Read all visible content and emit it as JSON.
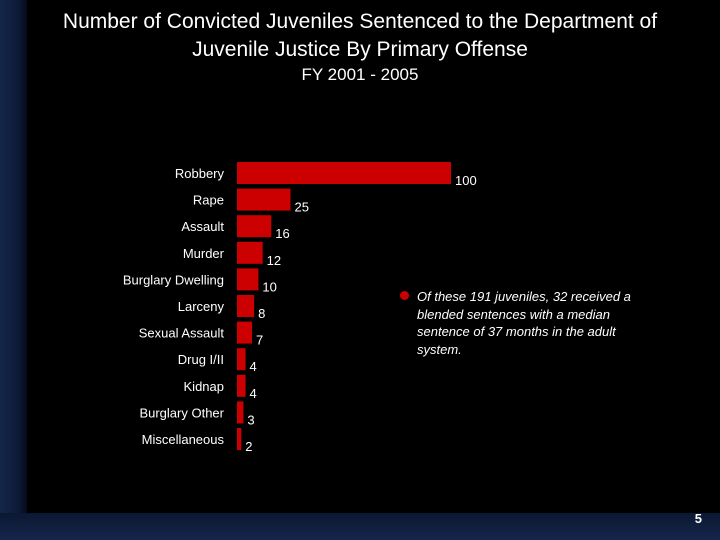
{
  "title": "Number of Convicted Juveniles Sentenced to the Department of Juvenile Justice By Primary Offense",
  "subtitle": "FY 2001 - 2005",
  "note": "Of these 191 juveniles, 32 received a blended sentences with a median sentence of 37 months in the adult system.",
  "page_number": "5",
  "colors": {
    "bar": "#cc0000",
    "background": "#000000",
    "text": "#ffffff",
    "bullet": "#cc0000"
  },
  "chart_data": {
    "type": "bar",
    "orientation": "horizontal",
    "title": "Number of Convicted Juveniles Sentenced to the Department of Juvenile Justice By Primary Offense",
    "subtitle": "FY 2001 - 2005",
    "categories": [
      "Robbery",
      "Rape",
      "Assault",
      "Murder",
      "Burglary Dwelling",
      "Larceny",
      "Sexual Assault",
      "Drug I/II",
      "Kidnap",
      "Burglary Other",
      "Miscellaneous"
    ],
    "values": [
      100,
      25,
      16,
      12,
      10,
      8,
      7,
      4,
      4,
      3,
      2
    ],
    "xlim": [
      0,
      100
    ],
    "xlabel": "",
    "ylabel": "",
    "grid": false,
    "legend": "none"
  }
}
